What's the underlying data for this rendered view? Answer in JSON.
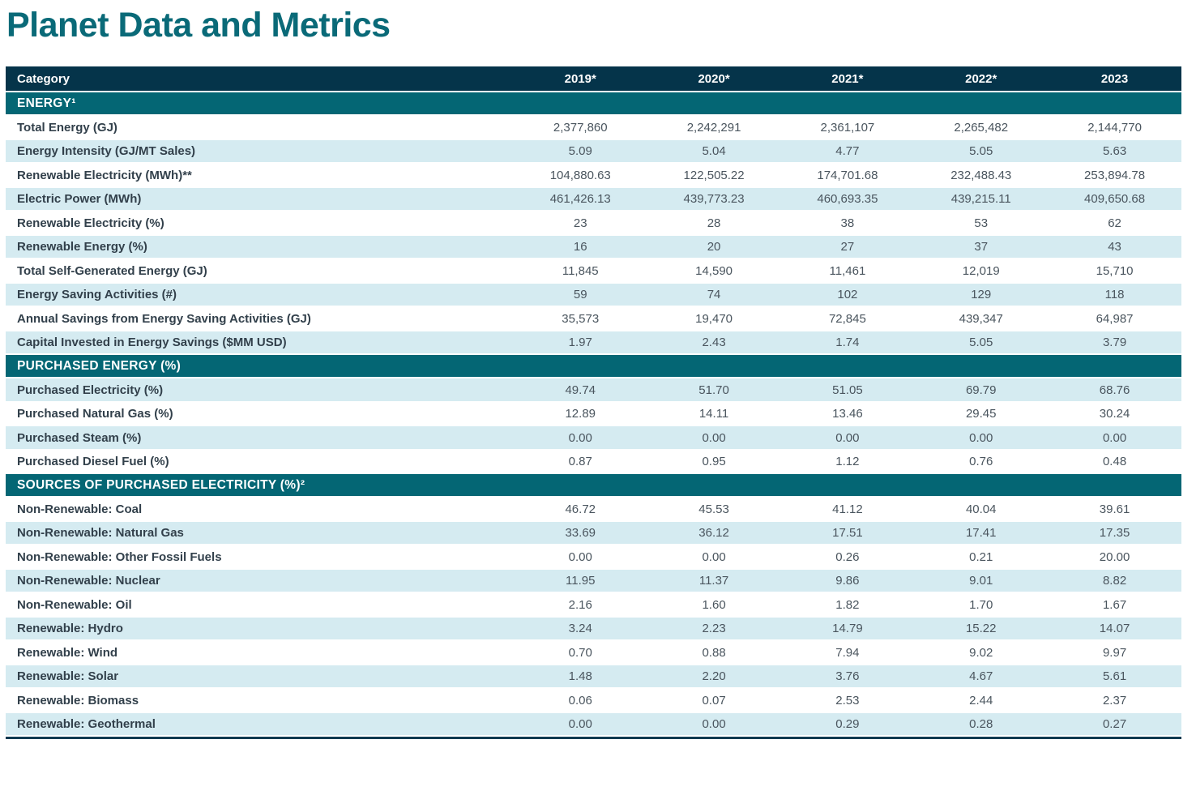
{
  "title": "Planet Data and Metrics",
  "colors": {
    "title": "#0a6a78",
    "header_bg": "#05344a",
    "section_bg": "#046674",
    "stripe_bg": "#d5ebf1",
    "label_text": "#32404b",
    "value_text": "#4a555e",
    "bottom_border": "#0b3950"
  },
  "table": {
    "columns": [
      "Category",
      "2019*",
      "2020*",
      "2021*",
      "2022*",
      "2023"
    ],
    "sections": [
      {
        "header": "ENERGY¹",
        "rows": [
          {
            "label": "Total Energy (GJ)",
            "values": [
              "2,377,860",
              "2,242,291",
              "2,361,107",
              "2,265,482",
              "2,144,770"
            ]
          },
          {
            "label": "Energy Intensity (GJ/MT Sales)",
            "values": [
              "5.09",
              "5.04",
              "4.77",
              "5.05",
              "5.63"
            ]
          },
          {
            "label": "Renewable Electricity (MWh)**",
            "values": [
              "104,880.63",
              "122,505.22",
              "174,701.68",
              "232,488.43",
              "253,894.78"
            ]
          },
          {
            "label": "Electric Power (MWh)",
            "values": [
              "461,426.13",
              "439,773.23",
              "460,693.35",
              "439,215.11",
              "409,650.68"
            ]
          },
          {
            "label": "Renewable Electricity (%)",
            "values": [
              "23",
              "28",
              "38",
              "53",
              "62"
            ]
          },
          {
            "label": "Renewable Energy (%)",
            "values": [
              "16",
              "20",
              "27",
              "37",
              "43"
            ]
          },
          {
            "label": "Total Self-Generated Energy (GJ)",
            "values": [
              "11,845",
              "14,590",
              "11,461",
              "12,019",
              "15,710"
            ]
          },
          {
            "label": "Energy Saving Activities (#)",
            "values": [
              "59",
              "74",
              "102",
              "129",
              "118"
            ]
          },
          {
            "label": "Annual Savings from Energy Saving Activities (GJ)",
            "values": [
              "35,573",
              "19,470",
              "72,845",
              "439,347",
              "64,987"
            ]
          },
          {
            "label": "Capital Invested in Energy Savings ($MM USD)",
            "values": [
              "1.97",
              "2.43",
              "1.74",
              "5.05",
              "3.79"
            ]
          }
        ]
      },
      {
        "header": "PURCHASED ENERGY (%)",
        "rows": [
          {
            "label": "Purchased Electricity (%)",
            "values": [
              "49.74",
              "51.70",
              "51.05",
              "69.79",
              "68.76"
            ]
          },
          {
            "label": "Purchased Natural Gas (%)",
            "values": [
              "12.89",
              "14.11",
              "13.46",
              "29.45",
              "30.24"
            ]
          },
          {
            "label": "Purchased Steam (%)",
            "values": [
              "0.00",
              "0.00",
              "0.00",
              "0.00",
              "0.00"
            ]
          },
          {
            "label": "Purchased Diesel Fuel (%)",
            "values": [
              "0.87",
              "0.95",
              "1.12",
              "0.76",
              "0.48"
            ]
          }
        ]
      },
      {
        "header": "SOURCES OF PURCHASED ELECTRICITY (%)²",
        "rows": [
          {
            "label": "Non-Renewable: Coal",
            "values": [
              "46.72",
              "45.53",
              "41.12",
              "40.04",
              "39.61"
            ]
          },
          {
            "label": "Non-Renewable: Natural Gas",
            "values": [
              "33.69",
              "36.12",
              "17.51",
              "17.41",
              "17.35"
            ]
          },
          {
            "label": "Non-Renewable: Other Fossil Fuels",
            "values": [
              "0.00",
              "0.00",
              "0.26",
              "0.21",
              "20.00"
            ]
          },
          {
            "label": "Non-Renewable: Nuclear",
            "values": [
              "11.95",
              "11.37",
              "9.86",
              "9.01",
              "8.82"
            ]
          },
          {
            "label": "Non-Renewable: Oil",
            "values": [
              "2.16",
              "1.60",
              "1.82",
              "1.70",
              "1.67"
            ]
          },
          {
            "label": "Renewable: Hydro",
            "values": [
              "3.24",
              "2.23",
              "14.79",
              "15.22",
              "14.07"
            ]
          },
          {
            "label": "Renewable: Wind",
            "values": [
              "0.70",
              "0.88",
              "7.94",
              "9.02",
              "9.97"
            ]
          },
          {
            "label": "Renewable: Solar",
            "values": [
              "1.48",
              "2.20",
              "3.76",
              "4.67",
              "5.61"
            ]
          },
          {
            "label": "Renewable: Biomass",
            "values": [
              "0.06",
              "0.07",
              "2.53",
              "2.44",
              "2.37"
            ]
          },
          {
            "label": "Renewable: Geothermal",
            "values": [
              "0.00",
              "0.00",
              "0.29",
              "0.28",
              "0.27"
            ]
          }
        ]
      }
    ]
  }
}
